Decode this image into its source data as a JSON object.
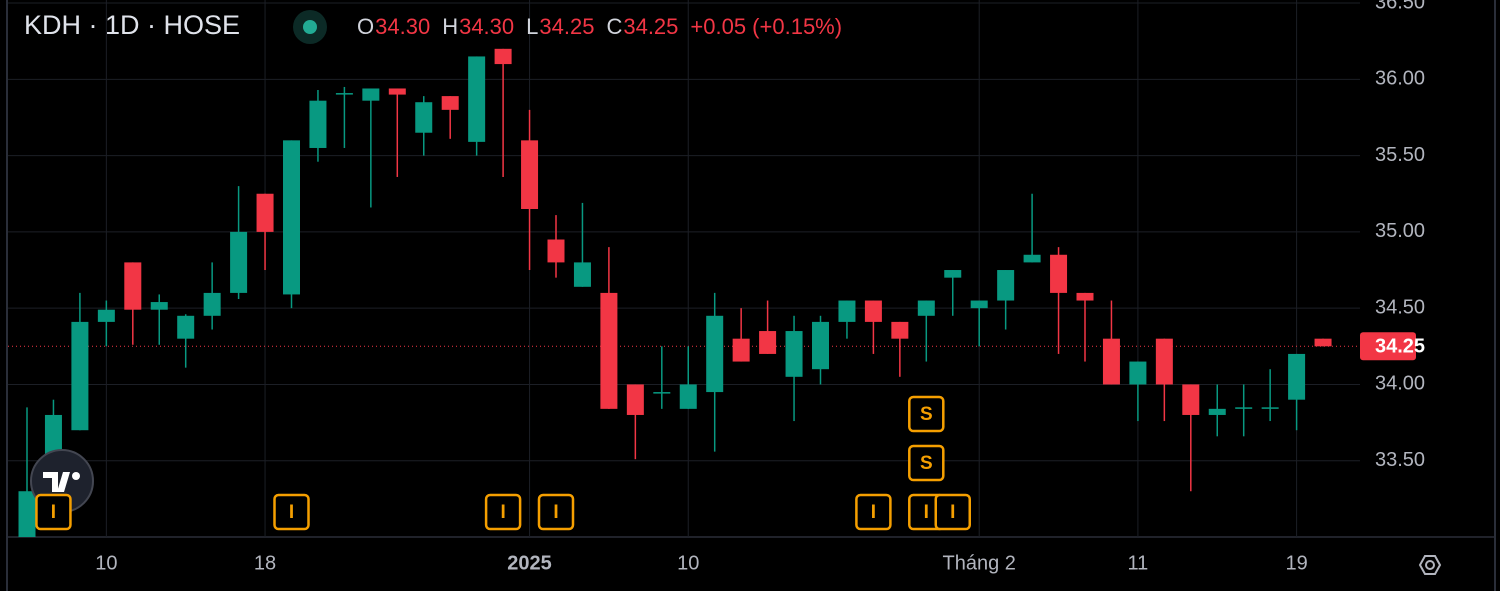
{
  "chart_data": {
    "type": "candlestick",
    "title": "KDH · 1D · HOSE",
    "legend": [
      {
        "label": "O",
        "value": "34.30"
      },
      {
        "label": "H",
        "value": "34.30"
      },
      {
        "label": "L",
        "value": "34.25"
      },
      {
        "label": "C",
        "value": "34.25"
      }
    ],
    "change": "+0.05 (+0.15%)",
    "up_color": "#089981",
    "down_color": "#f23645",
    "categories": [
      null,
      null,
      null,
      "10",
      null,
      null,
      null,
      null,
      null,
      "18",
      null,
      null,
      null,
      null,
      null,
      null,
      null,
      null,
      null,
      "2025",
      null,
      null,
      null,
      null,
      null,
      "10",
      null,
      null,
      null,
      null,
      null,
      null,
      null,
      null,
      null,
      null,
      "Tháng 2",
      null,
      null,
      null,
      null,
      null,
      "11",
      null,
      null,
      null,
      null,
      null,
      "19",
      null
    ],
    "open": [
      33.0,
      33.35,
      33.7,
      34.41,
      34.8,
      34.49,
      34.3,
      34.45,
      34.6,
      35.25,
      34.59,
      35.55,
      35.9,
      35.86,
      35.94,
      35.65,
      35.89,
      35.59,
      36.2,
      35.6,
      34.95,
      34.64,
      34.6,
      34.0,
      33.94,
      33.84,
      33.95,
      34.3,
      34.35,
      34.05,
      34.1,
      34.41,
      34.55,
      34.41,
      34.45,
      34.7,
      34.5,
      34.55,
      34.8,
      34.85,
      34.6,
      34.3,
      34.0,
      34.3,
      34.0,
      33.8,
      33.84,
      33.84,
      33.9,
      34.3
    ],
    "high": [
      33.85,
      33.9,
      34.6,
      34.55,
      34.8,
      34.59,
      34.46,
      34.8,
      35.3,
      35.25,
      35.6,
      35.93,
      35.95,
      35.94,
      35.94,
      35.89,
      35.89,
      36.15,
      36.2,
      35.8,
      35.11,
      35.19,
      34.9,
      34.0,
      34.25,
      34.25,
      34.6,
      34.5,
      34.55,
      34.45,
      34.45,
      34.55,
      34.55,
      34.41,
      34.55,
      34.75,
      34.55,
      34.75,
      35.25,
      34.9,
      34.6,
      34.55,
      34.15,
      34.3,
      34.0,
      34.0,
      34.0,
      34.1,
      34.2,
      34.3
    ],
    "low": [
      32.95,
      33.25,
      33.7,
      34.25,
      34.26,
      34.26,
      34.11,
      34.36,
      34.56,
      34.75,
      34.5,
      35.46,
      35.55,
      35.16,
      35.36,
      35.5,
      35.61,
      35.5,
      35.36,
      34.75,
      34.7,
      34.64,
      33.84,
      33.51,
      33.84,
      33.84,
      33.56,
      34.15,
      34.2,
      33.76,
      34.0,
      34.3,
      34.2,
      34.05,
      34.15,
      34.45,
      34.25,
      34.36,
      34.8,
      34.2,
      34.15,
      34.0,
      33.76,
      33.76,
      33.3,
      33.66,
      33.66,
      33.76,
      33.7,
      34.25
    ],
    "close": [
      33.3,
      33.8,
      34.41,
      34.49,
      34.49,
      34.54,
      34.45,
      34.6,
      35.0,
      35.0,
      35.6,
      35.86,
      35.91,
      35.94,
      35.9,
      35.85,
      35.8,
      36.15,
      36.1,
      35.15,
      34.8,
      34.8,
      33.84,
      33.8,
      33.95,
      34.0,
      34.45,
      34.15,
      34.2,
      34.35,
      34.41,
      34.55,
      34.41,
      34.3,
      34.55,
      34.75,
      34.55,
      34.75,
      34.85,
      34.6,
      34.55,
      34.0,
      34.15,
      34.0,
      33.8,
      33.84,
      33.85,
      33.85,
      34.2,
      34.25
    ],
    "last_price": {
      "value": 34.25,
      "label": "34.25"
    },
    "events": [
      {
        "label": "I",
        "at": 1
      },
      {
        "label": "I",
        "at": 10
      },
      {
        "label": "I",
        "at": 18
      },
      {
        "label": "I",
        "at": 20
      },
      {
        "label": "I",
        "at": 32
      },
      {
        "label": "I",
        "at": 34
      },
      {
        "label": "S",
        "at": 34
      },
      {
        "label": "S",
        "at": 34
      },
      {
        "label": "I",
        "at": 35
      }
    ],
    "ylim": [
      33.0,
      36.52
    ],
    "yticks": [
      {
        "value": 33.5,
        "label": "33.50"
      },
      {
        "value": 34.0,
        "label": "34.00"
      },
      {
        "value": 34.5,
        "label": "34.50"
      },
      {
        "value": 35.0,
        "label": "35.00"
      },
      {
        "value": 35.5,
        "label": "35.50"
      },
      {
        "value": 36.0,
        "label": "36.00"
      },
      {
        "value": 36.5,
        "label": "36.50"
      }
    ],
    "grid": true
  }
}
